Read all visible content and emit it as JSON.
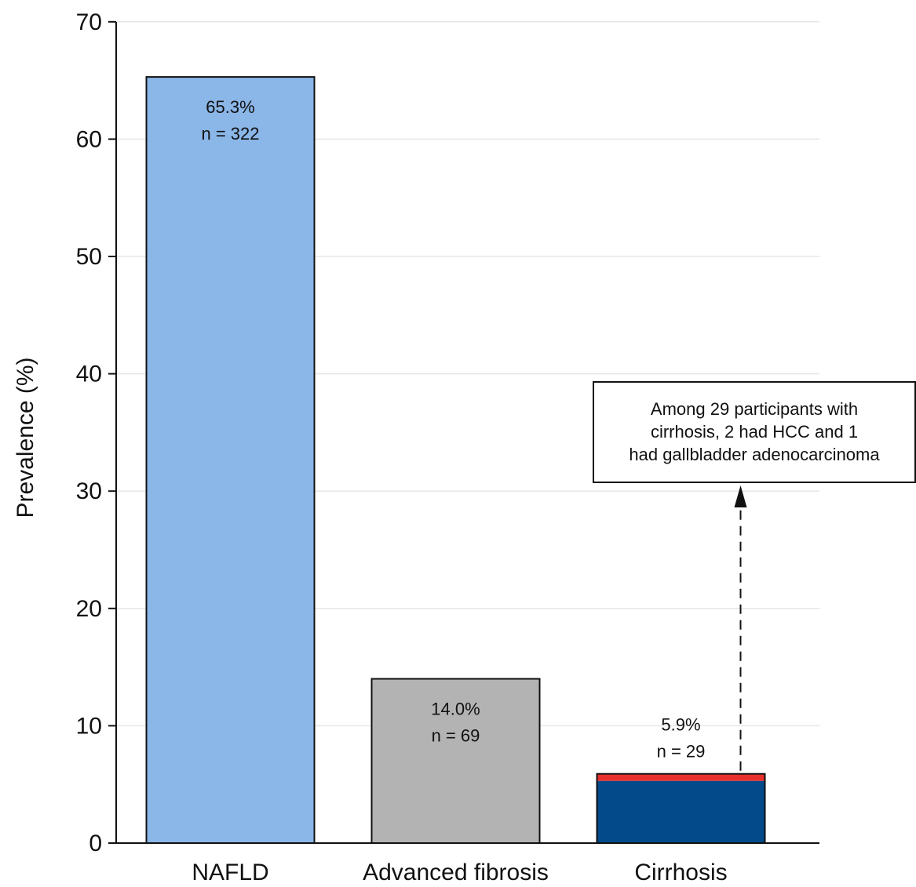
{
  "chart_data": {
    "type": "bar",
    "title": "",
    "xlabel": "",
    "ylabel": "Prevalence (%)",
    "ylim": [
      0,
      70
    ],
    "yticks": [
      0,
      10,
      20,
      30,
      40,
      50,
      60,
      70
    ],
    "grid": true,
    "categories": [
      "NAFLD",
      "Advanced fibrosis",
      "Cirrhosis"
    ],
    "values": [
      65.3,
      14.0,
      5.9
    ],
    "bars": [
      {
        "category": "NAFLD",
        "value": 65.3,
        "label_pct": "65.3%",
        "label_n": "n = 322",
        "color": "#8ab6e8"
      },
      {
        "category": "Advanced fibrosis",
        "value": 14.0,
        "label_pct": "14.0%",
        "label_n": "n = 69",
        "color": "#b3b3b3"
      },
      {
        "category": "Cirrhosis",
        "value": 5.9,
        "label_pct": "5.9%",
        "label_n": "n = 29",
        "color": "#034a8a",
        "segments": [
          {
            "value": 5.3,
            "color": "#034a8a"
          },
          {
            "value": 0.6,
            "color": "#e8302c"
          }
        ]
      }
    ],
    "annotation": {
      "lines": [
        "Among 29 participants with",
        "cirrhosis, 2 had HCC and 1",
        "had gallbladder adenocarcinoma"
      ],
      "arrow_style": "dashed"
    }
  }
}
